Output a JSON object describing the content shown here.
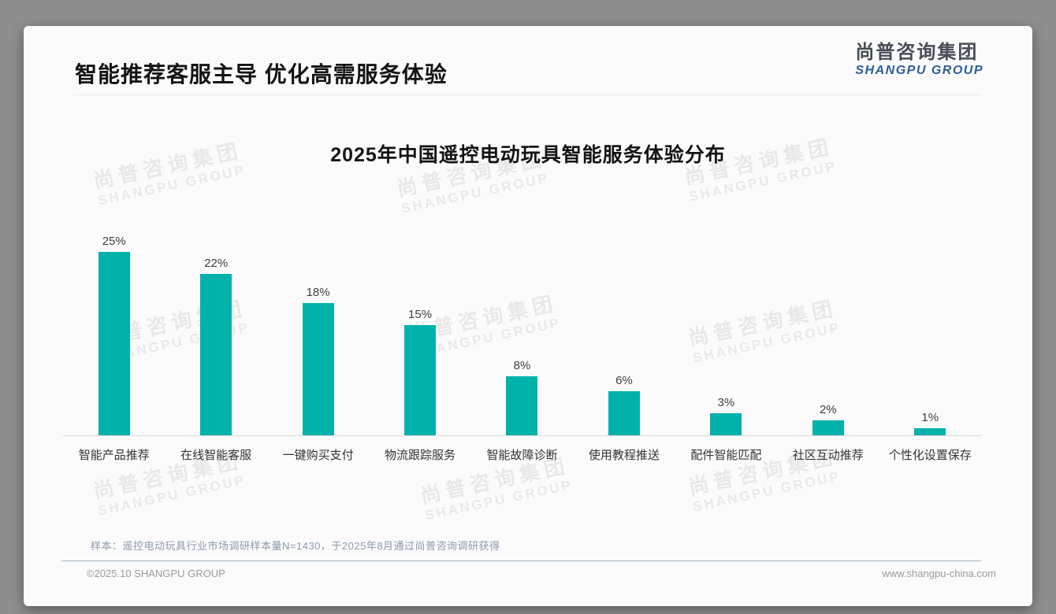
{
  "header": {
    "title": "智能推荐客服主导 优化高需服务体验"
  },
  "logo": {
    "name_cn": "尚普咨询集团",
    "name_en": "SHANGPU GROUP"
  },
  "watermark": {
    "line1": "尚普咨询集团",
    "line2": "SHANGPU GROUP"
  },
  "chart_data": {
    "type": "bar",
    "title": "2025年中国遥控电动玩具智能服务体验分布",
    "categories": [
      "智能产品推荐",
      "在线智能客服",
      "一键购买支付",
      "物流跟踪服务",
      "智能故障诊断",
      "使用教程推送",
      "配件智能匹配",
      "社区互动推荐",
      "个性化设置保存"
    ],
    "values": [
      25,
      22,
      18,
      15,
      8,
      6,
      3,
      2,
      1
    ],
    "value_labels": [
      "25%",
      "22%",
      "18%",
      "15%",
      "8%",
      "6%",
      "3%",
      "2%",
      "1%"
    ],
    "xlabel": "",
    "ylabel": "",
    "ylim": [
      0,
      25
    ],
    "grid": false,
    "legend": false,
    "bar_color": "#00b2aa"
  },
  "note": {
    "text": "样本：遥控电动玩具行业市场调研样本量N=1430，于2025年8月通过尚普咨询调研获得"
  },
  "footer": {
    "left": "©2025.10 SHANGPU GROUP",
    "right": "www.shangpu-china.com"
  },
  "colors": {
    "accent_teal": "#00b2aa",
    "logo_blue": "#2d5d9c",
    "note_blue_gray": "#8b9ab0",
    "page_background": "#8e8e8e",
    "card_background": "#fbfbfb"
  }
}
